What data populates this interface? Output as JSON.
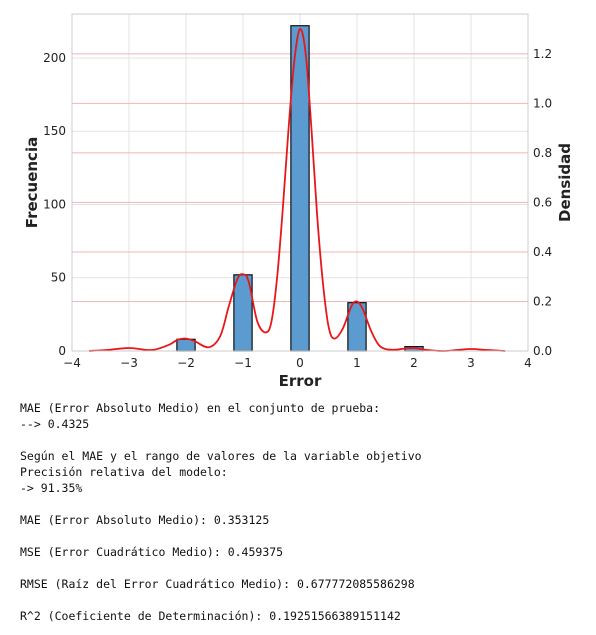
{
  "chart_data": {
    "type": "bar",
    "xlabel": "Error",
    "ylabel": "Frecuencia",
    "y2label": "Densidad",
    "xlim": [
      -4,
      4
    ],
    "ylim": [
      0,
      230
    ],
    "y2lim": [
      0,
      1.3608
    ],
    "xticks": [
      "-4",
      "-3",
      "-2",
      "-1",
      "0",
      "1",
      "2",
      "3",
      "4"
    ],
    "yticks": [
      "0",
      "50",
      "100",
      "150",
      "200"
    ],
    "y2ticks": [
      "0.0",
      "0.2",
      "0.4",
      "0.6",
      "0.8",
      "1.0",
      "1.2"
    ],
    "grid": true,
    "bars": [
      {
        "x": -2,
        "value": 8
      },
      {
        "x": -1,
        "value": 52
      },
      {
        "x": 0,
        "value": 222
      },
      {
        "x": 1,
        "value": 33
      },
      {
        "x": 2,
        "value": 3
      }
    ],
    "bar_color": "#5b9bd0",
    "kde_color": "#e8171a",
    "kde": {
      "x": [
        -3.7,
        -3.4,
        -3.0,
        -2.6,
        -2.3,
        -2.15,
        -2.0,
        -1.85,
        -1.6,
        -1.4,
        -1.25,
        -1.1,
        -1.0,
        -0.9,
        -0.75,
        -0.6,
        -0.5,
        -0.4,
        -0.3,
        -0.2,
        -0.1,
        0.0,
        0.1,
        0.2,
        0.3,
        0.4,
        0.5,
        0.6,
        0.75,
        0.9,
        1.0,
        1.1,
        1.25,
        1.4,
        1.6,
        1.85,
        2.0,
        2.2,
        2.5,
        2.8,
        3.0,
        3.3,
        3.6
      ],
      "y": [
        0.0,
        0.004,
        0.012,
        0.004,
        0.025,
        0.045,
        0.05,
        0.04,
        0.015,
        0.06,
        0.18,
        0.29,
        0.31,
        0.28,
        0.12,
        0.075,
        0.12,
        0.3,
        0.58,
        0.9,
        1.17,
        1.3,
        1.2,
        0.9,
        0.55,
        0.28,
        0.1,
        0.05,
        0.09,
        0.18,
        0.2,
        0.17,
        0.08,
        0.02,
        0.005,
        0.01,
        0.012,
        0.005,
        0.0,
        0.005,
        0.008,
        0.004,
        0.0
      ]
    }
  },
  "output_lines": [
    "MAE (Error Absoluto Medio) en el conjunto de prueba:",
    "--> 0.4325",
    "",
    "Según el MAE y el rango de valores de la variable objetivo",
    "Precisión relativa del modelo:",
    "-> 91.35%",
    "",
    "MAE (Error Absoluto Medio): 0.353125",
    "",
    "MSE (Error Cuadrático Medio): 0.459375",
    "",
    "RMSE (Raíz del Error Cuadrático Medio): 0.677772085586298",
    "",
    "R^2 (Coeficiente de Determinación): 0.19251566389151142"
  ]
}
